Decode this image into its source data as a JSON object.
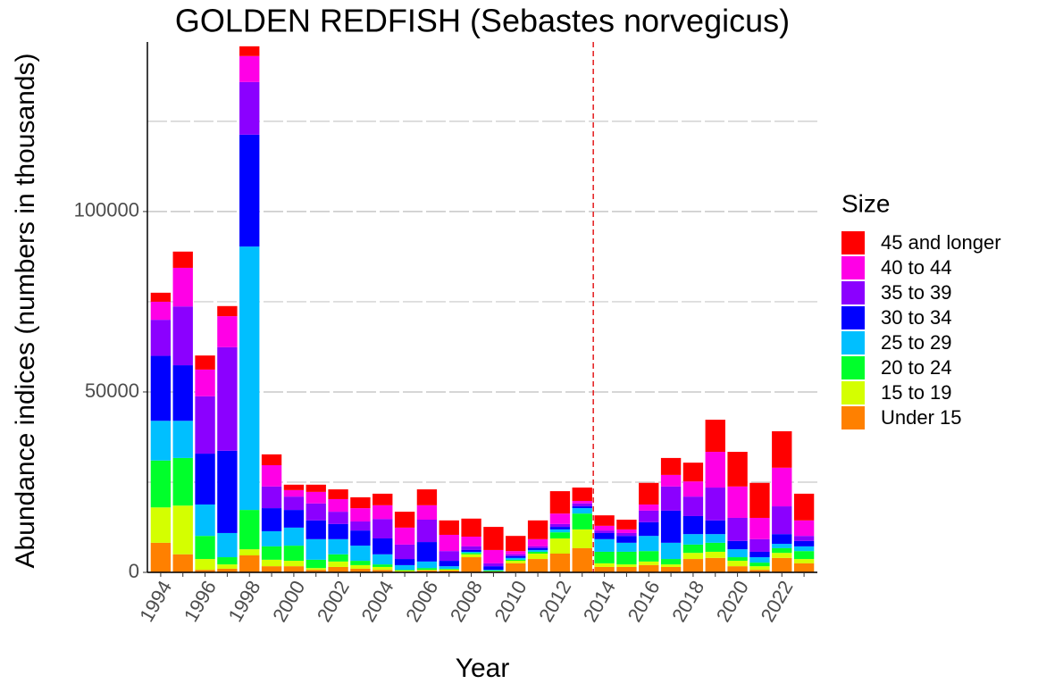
{
  "chart_data": {
    "type": "stacked_bar",
    "title": "GOLDEN REDFISH (Sebastes norvegicus)",
    "x_label": "Year",
    "y_label": "Abundance indices (numbers in thousands)",
    "legend_title": "Size",
    "x": [
      1994,
      1995,
      1996,
      1997,
      1998,
      1999,
      2000,
      2001,
      2002,
      2003,
      2004,
      2005,
      2006,
      2007,
      2008,
      2009,
      2010,
      2011,
      2012,
      2013,
      2014,
      2015,
      2016,
      2017,
      2018,
      2019,
      2020,
      2021,
      2022,
      2023
    ],
    "xlim": [
      1993.4,
      2023.6
    ],
    "xticks": [
      1994,
      1996,
      1998,
      2000,
      2002,
      2004,
      2006,
      2008,
      2010,
      2012,
      2014,
      2016,
      2018,
      2020,
      2022
    ],
    "ylim": [
      0,
      147000
    ],
    "yticks": [
      0,
      50000,
      100000
    ],
    "minor_yticks": [
      25000,
      75000,
      125000
    ],
    "grid": true,
    "vline_x": 2013.5,
    "vline_color": "#e31a1c",
    "series": [
      {
        "name": "Under 15",
        "color": "#ff8000",
        "values": [
          8200,
          5000,
          700,
          1000,
          4700,
          1700,
          1700,
          700,
          1500,
          1000,
          700,
          200,
          500,
          500,
          4200,
          200,
          2500,
          3700,
          5200,
          6700,
          1500,
          1500,
          2000,
          1500,
          3700,
          4000,
          1700,
          700,
          4000,
          2500
        ]
      },
      {
        "name": "15 to 19",
        "color": "#d4ff00",
        "values": [
          9800,
          13500,
          3000,
          1200,
          1700,
          1800,
          1500,
          500,
          1500,
          1000,
          800,
          300,
          200,
          300,
          800,
          100,
          700,
          1500,
          4200,
          5200,
          1000,
          700,
          1000,
          700,
          1700,
          1700,
          1500,
          1000,
          1400,
          1200
        ]
      },
      {
        "name": "20 to 24",
        "color": "#00ff2b",
        "values": [
          13000,
          13200,
          6400,
          2000,
          10900,
          3700,
          4200,
          2300,
          2000,
          1200,
          700,
          200,
          500,
          200,
          400,
          200,
          300,
          500,
          1700,
          4400,
          3200,
          3500,
          2900,
          1500,
          2300,
          2500,
          1000,
          1000,
          1300,
          2200
        ]
      },
      {
        "name": "25 to 29",
        "color": "#00bfff",
        "values": [
          11000,
          10300,
          8700,
          6700,
          73000,
          4200,
          5000,
          5700,
          4200,
          4200,
          2800,
          1300,
          1800,
          700,
          300,
          200,
          500,
          500,
          800,
          1500,
          3500,
          2500,
          4200,
          4500,
          2900,
          2400,
          2200,
          1500,
          1200,
          1300
        ]
      },
      {
        "name": "30 to 34",
        "color": "#0000ff",
        "values": [
          18000,
          15400,
          14100,
          22800,
          31000,
          6400,
          4900,
          5200,
          4200,
          4200,
          4400,
          1700,
          5400,
          1500,
          500,
          1000,
          500,
          500,
          700,
          500,
          1700,
          1900,
          3800,
          8900,
          5000,
          3800,
          2300,
          1500,
          2700,
          1500
        ]
      },
      {
        "name": "35 to 39",
        "color": "#8b00ff",
        "values": [
          10000,
          16300,
          15900,
          28700,
          14600,
          6000,
          3700,
          4700,
          3400,
          2500,
          5400,
          4000,
          6200,
          2700,
          1000,
          800,
          500,
          500,
          800,
          800,
          700,
          800,
          3200,
          6700,
          5400,
          9100,
          6400,
          3500,
          7700,
          1400
        ]
      },
      {
        "name": "40 to 44",
        "color": "#ff00e6",
        "values": [
          5000,
          10700,
          7400,
          8600,
          7200,
          5900,
          1800,
          3200,
          3500,
          3700,
          3800,
          4700,
          4000,
          4500,
          2700,
          3700,
          900,
          2000,
          2900,
          700,
          1300,
          1000,
          1700,
          3200,
          4200,
          9900,
          8700,
          5900,
          10700,
          4300
        ]
      },
      {
        "name": "45 and longer",
        "color": "#ff0000",
        "values": [
          2500,
          4500,
          3900,
          2800,
          2700,
          3000,
          1500,
          2000,
          2700,
          3000,
          3200,
          4400,
          4400,
          4000,
          5000,
          6400,
          4200,
          5200,
          6200,
          3700,
          2900,
          2700,
          6000,
          4700,
          5200,
          8900,
          9600,
          9700,
          10100,
          7400
        ]
      }
    ]
  }
}
